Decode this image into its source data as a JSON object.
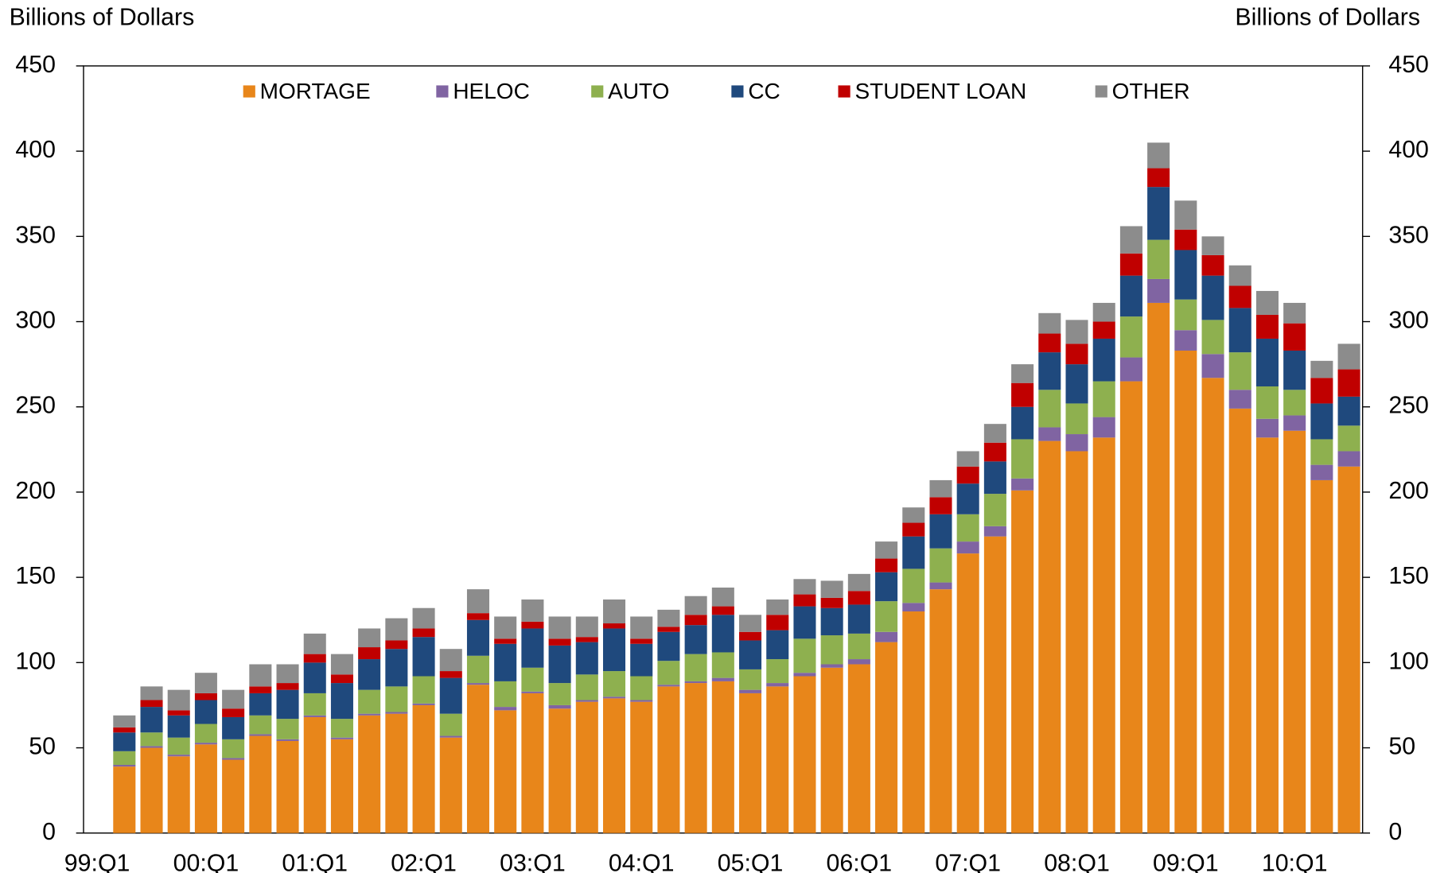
{
  "chart_data": {
    "type": "stacked_bar",
    "y_label": "Billions of Dollars",
    "y2_label": "Billions of Dollars",
    "categories": [
      "99:Q1",
      null,
      null,
      null,
      "00:Q1",
      null,
      null,
      null,
      "01:Q1",
      null,
      null,
      null,
      "02:Q1",
      null,
      null,
      null,
      "03:Q1",
      null,
      null,
      null,
      "04:Q1",
      null,
      null,
      null,
      "05:Q1",
      null,
      null,
      null,
      "06:Q1",
      null,
      null,
      null,
      "07:Q1",
      null,
      null,
      null,
      "08:Q1",
      null,
      null,
      null,
      "09:Q1",
      null,
      null,
      null,
      "10:Q1",
      null,
      null
    ],
    "series": [
      {
        "name": "MORTAGE",
        "color": "#e8861a",
        "values": [
          0,
          39,
          50,
          45,
          52,
          43,
          57,
          54,
          68,
          55,
          69,
          70,
          75,
          56,
          87,
          72,
          82,
          73,
          77,
          79,
          77,
          86,
          88,
          89,
          82,
          86,
          92,
          97,
          99,
          112,
          130,
          143,
          164,
          174,
          201,
          230,
          224,
          232,
          265,
          311,
          283,
          267,
          249,
          232,
          236,
          207,
          215
        ]
      },
      {
        "name": "HELOC",
        "color": "#8064a2",
        "values": [
          0,
          1,
          1,
          1,
          1,
          1,
          1,
          1,
          1,
          1,
          1,
          1,
          1,
          1,
          1,
          2,
          1,
          2,
          1,
          1,
          1,
          1,
          1,
          2,
          2,
          2,
          2,
          2,
          3,
          6,
          5,
          4,
          7,
          6,
          7,
          8,
          10,
          12,
          14,
          14,
          12,
          14,
          11,
          11,
          9,
          9,
          9
        ]
      },
      {
        "name": "AUTO",
        "color": "#8eb04f",
        "values": [
          0,
          8,
          8,
          10,
          11,
          11,
          11,
          12,
          13,
          11,
          14,
          15,
          16,
          13,
          16,
          15,
          14,
          13,
          15,
          15,
          14,
          14,
          16,
          15,
          12,
          14,
          20,
          17,
          15,
          18,
          20,
          20,
          16,
          19,
          23,
          22,
          18,
          21,
          24,
          23,
          18,
          20,
          22,
          19,
          15,
          15,
          15
        ]
      },
      {
        "name": "CC",
        "color": "#1f497d",
        "values": [
          0,
          11,
          15,
          13,
          14,
          13,
          13,
          17,
          18,
          21,
          18,
          22,
          23,
          21,
          21,
          22,
          23,
          22,
          19,
          25,
          19,
          17,
          17,
          22,
          17,
          17,
          19,
          16,
          17,
          17,
          19,
          20,
          18,
          19,
          19,
          22,
          23,
          25,
          24,
          31,
          29,
          26,
          26,
          28,
          23,
          21,
          17
        ]
      },
      {
        "name": "STUDENT LOAN",
        "color": "#c00000",
        "values": [
          0,
          3,
          4,
          3,
          4,
          5,
          4,
          4,
          5,
          5,
          7,
          5,
          5,
          4,
          4,
          3,
          4,
          4,
          3,
          3,
          3,
          3,
          6,
          5,
          5,
          9,
          7,
          6,
          8,
          8,
          8,
          10,
          10,
          11,
          14,
          11,
          12,
          10,
          13,
          11,
          12,
          12,
          13,
          14,
          16,
          15,
          16
        ]
      },
      {
        "name": "OTHER",
        "color": "#8c8c8c",
        "values": [
          0,
          7,
          8,
          12,
          12,
          11,
          13,
          11,
          12,
          12,
          11,
          13,
          12,
          13,
          14,
          13,
          13,
          13,
          12,
          14,
          13,
          10,
          11,
          11,
          10,
          9,
          9,
          10,
          10,
          10,
          9,
          10,
          9,
          11,
          11,
          12,
          14,
          11,
          16,
          15,
          17,
          11,
          12,
          14,
          12,
          10,
          15
        ]
      }
    ],
    "ylim": [
      0,
      450
    ],
    "yticks": [
      0,
      50,
      100,
      150,
      200,
      250,
      300,
      350,
      400,
      450
    ],
    "y2lim": [
      0,
      450
    ],
    "y2ticks": [
      0,
      50,
      100,
      150,
      200,
      250,
      300,
      350,
      400,
      450
    ],
    "legend": "top"
  }
}
